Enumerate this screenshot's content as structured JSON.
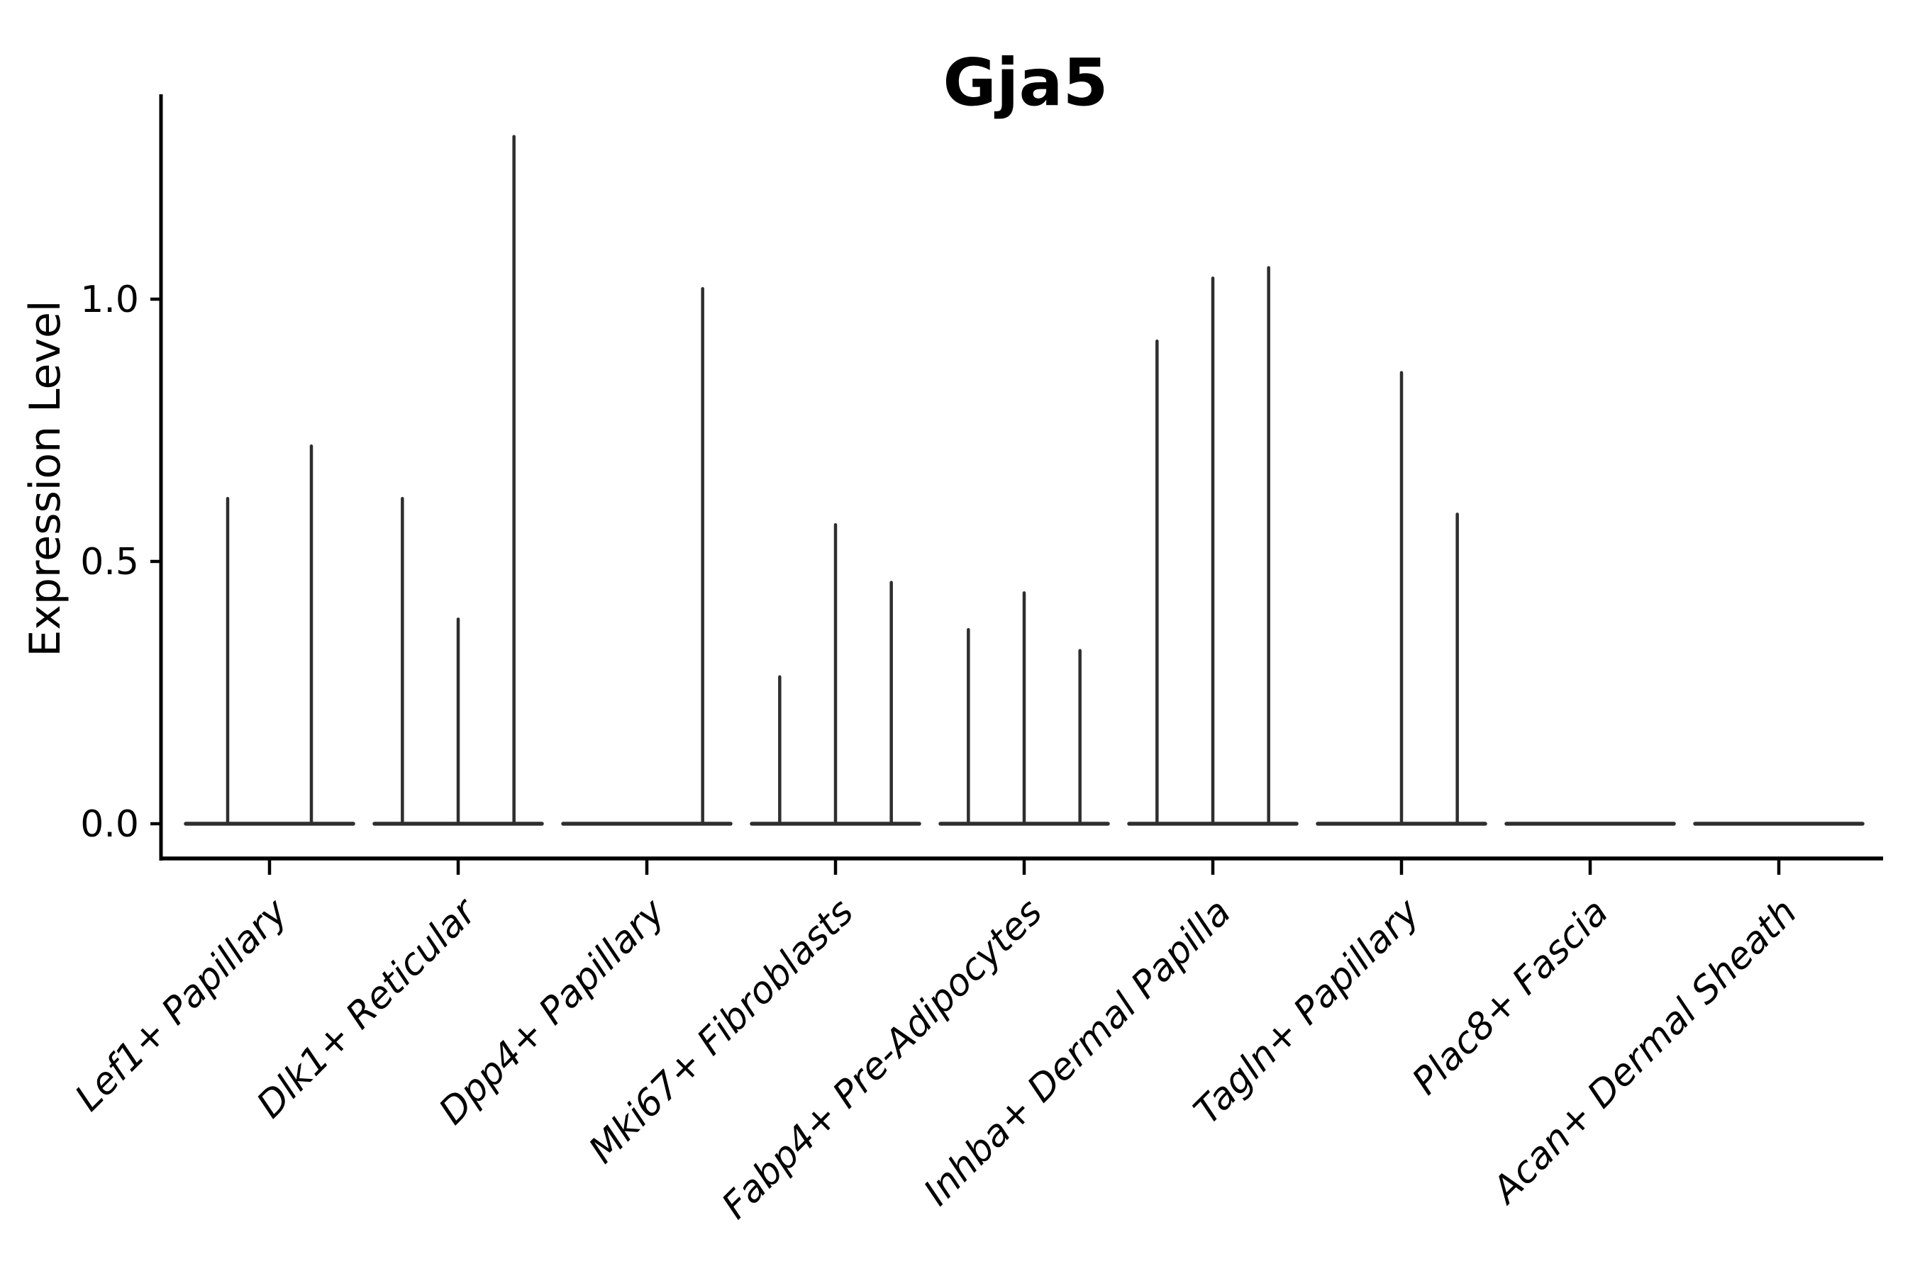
{
  "figure": {
    "title": "Gja5",
    "y_axis_label": "Expression Level"
  },
  "chart_data": {
    "type": "violin",
    "title": "Gja5",
    "xlabel": "",
    "ylabel": "Expression Level",
    "ylim": [
      0,
      1.38
    ],
    "grid": false,
    "legend_position": "none",
    "yticks": [
      {
        "value": 0.0,
        "label": "0.0"
      },
      {
        "value": 0.5,
        "label": "0.5"
      },
      {
        "value": 1.0,
        "label": "1.0"
      }
    ],
    "categories": [
      "Lef1+ Papillary",
      "Dlk1+ Reticular",
      "Dpp4+ Papillary",
      "Mki67+ Fibroblasts",
      "Fabp4+ Pre-Adipocytes",
      "Inhba+ Dermal Papilla",
      "Tagln+ Papillary",
      "Plac8+ Fascia",
      "Acan+ Dermal Sheath"
    ],
    "groups": [
      {
        "label": "Lef1+ Papillary",
        "violin_peaks": [
          0.62,
          0.72
        ]
      },
      {
        "label": "Dlk1+ Reticular",
        "violin_peaks": [
          0.62,
          0.39,
          1.31
        ]
      },
      {
        "label": "Dpp4+ Papillary",
        "violin_peaks": [
          0,
          0,
          1.02
        ]
      },
      {
        "label": "Mki67+ Fibroblasts",
        "violin_peaks": [
          0.28,
          0.57,
          0.46
        ]
      },
      {
        "label": "Fabp4+ Pre-Adipocytes",
        "violin_peaks": [
          0.37,
          0.44,
          0.33
        ]
      },
      {
        "label": "Inhba+ Dermal Papilla",
        "violin_peaks": [
          0.92,
          1.04,
          1.06
        ]
      },
      {
        "label": "Tagln+ Papillary",
        "violin_peaks": [
          0,
          0.86,
          0.59
        ]
      },
      {
        "label": "Plac8+ Fascia",
        "violin_peaks": [
          0,
          0,
          0
        ]
      },
      {
        "label": "Acan+ Dermal Sheath",
        "violin_peaks": [
          0,
          0,
          0
        ]
      }
    ]
  },
  "colors": {
    "violin": "#2e2e2e",
    "axis": "#000000",
    "text": "#000000",
    "background": "#ffffff"
  }
}
